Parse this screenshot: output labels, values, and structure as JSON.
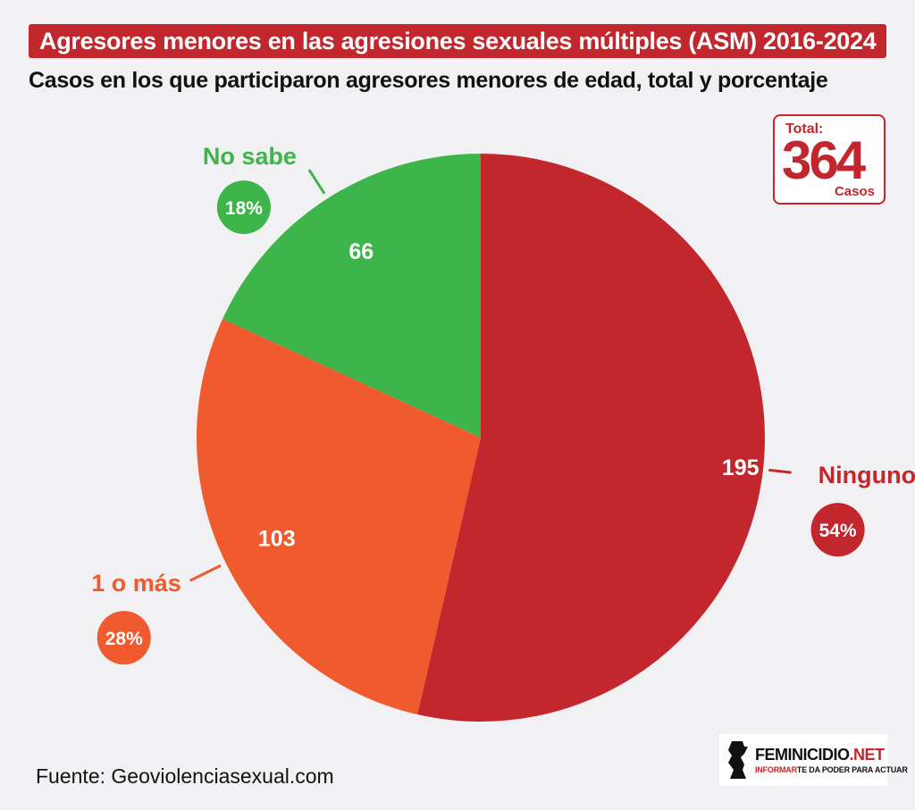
{
  "header": {
    "title": "Agresores menores en las agresiones sexuales múltiples (ASM) 2016-2024",
    "subtitle": "Casos en los que participaron agresores menores de edad, total y porcentaje"
  },
  "total_box": {
    "label": "Total:",
    "value": "364",
    "unit": "Casos"
  },
  "chart_data": {
    "type": "pie",
    "total": 364,
    "slices": [
      {
        "label": "Ninguno",
        "value": 195,
        "percent": "54%",
        "color": "#c1272d"
      },
      {
        "label": "1 o más",
        "value": 103,
        "percent": "28%",
        "color": "#ef5a2e"
      },
      {
        "label": "No sabe",
        "value": 66,
        "percent": "18%",
        "color": "#3db54a"
      }
    ]
  },
  "footer": {
    "source": "Fuente: Geoviolenciasexual.com"
  },
  "logo": {
    "name_main": "FEMINICIDIO",
    "name_suffix": ".NET",
    "tagline_part1": "INFORMAR",
    "tagline_part2": "TE DA PODER PARA ACTUAR"
  }
}
